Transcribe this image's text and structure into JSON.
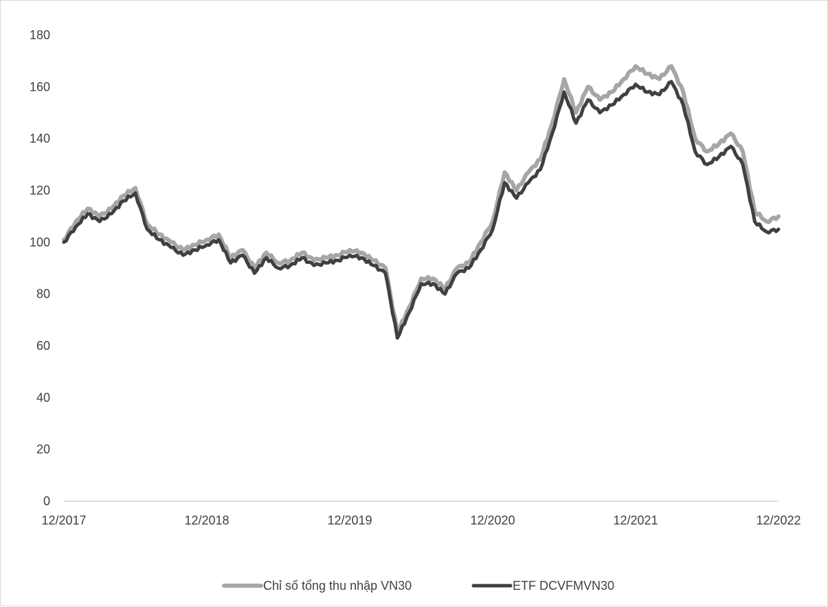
{
  "chart_data": {
    "type": "line",
    "title": "",
    "xlabel": "",
    "ylabel": "",
    "ylim": [
      0,
      180
    ],
    "yticks": [
      0,
      20,
      40,
      60,
      80,
      100,
      120,
      140,
      160,
      180
    ],
    "x_tick_labels": [
      "12/2017",
      "12/2018",
      "12/2019",
      "12/2020",
      "12/2021",
      "12/2022"
    ],
    "x_range": [
      "12/2017",
      "12/2022"
    ],
    "grid": false,
    "legend_position": "bottom",
    "series": [
      {
        "name": "Chỉ số tổng thu nhập VN30",
        "color": "#a6a6a6",
        "points": [
          [
            "12/2017",
            101
          ],
          [
            "01/2018",
            108
          ],
          [
            "02/2018",
            113
          ],
          [
            "03/2018",
            110
          ],
          [
            "04/2018",
            113
          ],
          [
            "05/2018",
            118
          ],
          [
            "06/2018",
            121
          ],
          [
            "07/2018",
            107
          ],
          [
            "08/2018",
            103
          ],
          [
            "09/2018",
            100
          ],
          [
            "10/2018",
            97
          ],
          [
            "11/2018",
            99
          ],
          [
            "12/2018",
            101
          ],
          [
            "01/2019",
            103
          ],
          [
            "02/2019",
            94
          ],
          [
            "03/2019",
            97
          ],
          [
            "04/2019",
            90
          ],
          [
            "05/2019",
            96
          ],
          [
            "06/2019",
            92
          ],
          [
            "07/2019",
            93
          ],
          [
            "08/2019",
            96
          ],
          [
            "09/2019",
            93
          ],
          [
            "10/2019",
            94
          ],
          [
            "11/2019",
            95
          ],
          [
            "12/2019",
            97
          ],
          [
            "01/2020",
            96
          ],
          [
            "02/2020",
            93
          ],
          [
            "03/2020",
            90
          ],
          [
            "04/2020",
            65
          ],
          [
            "05/2020",
            75
          ],
          [
            "06/2020",
            86
          ],
          [
            "07/2020",
            86
          ],
          [
            "08/2020",
            82
          ],
          [
            "09/2020",
            90
          ],
          [
            "10/2020",
            92
          ],
          [
            "11/2020",
            100
          ],
          [
            "12/2020",
            108
          ],
          [
            "01/2021",
            127
          ],
          [
            "02/2021",
            120
          ],
          [
            "03/2021",
            127
          ],
          [
            "04/2021",
            132
          ],
          [
            "05/2021",
            146
          ],
          [
            "06/2021",
            163
          ],
          [
            "07/2021",
            150
          ],
          [
            "08/2021",
            160
          ],
          [
            "09/2021",
            155
          ],
          [
            "10/2021",
            158
          ],
          [
            "11/2021",
            163
          ],
          [
            "12/2021",
            168
          ],
          [
            "01/2022",
            165
          ],
          [
            "02/2022",
            163
          ],
          [
            "03/2022",
            168
          ],
          [
            "04/2022",
            158
          ],
          [
            "05/2022",
            140
          ],
          [
            "06/2022",
            135
          ],
          [
            "07/2022",
            138
          ],
          [
            "08/2022",
            142
          ],
          [
            "09/2022",
            135
          ],
          [
            "10/2022",
            112
          ],
          [
            "11/2022",
            108
          ],
          [
            "12/2022",
            110
          ]
        ]
      },
      {
        "name": "ETF DCVFMVN30",
        "color": "#404040",
        "points": [
          [
            "12/2017",
            100
          ],
          [
            "01/2018",
            106
          ],
          [
            "02/2018",
            111
          ],
          [
            "03/2018",
            108
          ],
          [
            "04/2018",
            111
          ],
          [
            "05/2018",
            116
          ],
          [
            "06/2018",
            119
          ],
          [
            "07/2018",
            105
          ],
          [
            "08/2018",
            101
          ],
          [
            "09/2018",
            98
          ],
          [
            "10/2018",
            95
          ],
          [
            "11/2018",
            97
          ],
          [
            "12/2018",
            99
          ],
          [
            "01/2019",
            101
          ],
          [
            "02/2019",
            92
          ],
          [
            "03/2019",
            95
          ],
          [
            "04/2019",
            88
          ],
          [
            "05/2019",
            94
          ],
          [
            "06/2019",
            90
          ],
          [
            "07/2019",
            91
          ],
          [
            "08/2019",
            94
          ],
          [
            "09/2019",
            91
          ],
          [
            "10/2019",
            92
          ],
          [
            "11/2019",
            93
          ],
          [
            "12/2019",
            95
          ],
          [
            "01/2020",
            94
          ],
          [
            "02/2020",
            91
          ],
          [
            "03/2020",
            88
          ],
          [
            "04/2020",
            63
          ],
          [
            "05/2020",
            73
          ],
          [
            "06/2020",
            84
          ],
          [
            "07/2020",
            84
          ],
          [
            "08/2020",
            80
          ],
          [
            "09/2020",
            88
          ],
          [
            "10/2020",
            90
          ],
          [
            "11/2020",
            97
          ],
          [
            "12/2020",
            105
          ],
          [
            "01/2021",
            123
          ],
          [
            "02/2021",
            117
          ],
          [
            "03/2021",
            123
          ],
          [
            "04/2021",
            128
          ],
          [
            "05/2021",
            142
          ],
          [
            "06/2021",
            158
          ],
          [
            "07/2021",
            146
          ],
          [
            "08/2021",
            155
          ],
          [
            "09/2021",
            150
          ],
          [
            "10/2021",
            153
          ],
          [
            "11/2021",
            157
          ],
          [
            "12/2021",
            161
          ],
          [
            "01/2022",
            158
          ],
          [
            "02/2022",
            157
          ],
          [
            "03/2022",
            162
          ],
          [
            "04/2022",
            153
          ],
          [
            "05/2022",
            135
          ],
          [
            "06/2022",
            130
          ],
          [
            "07/2022",
            133
          ],
          [
            "08/2022",
            137
          ],
          [
            "09/2022",
            130
          ],
          [
            "10/2022",
            108
          ],
          [
            "11/2022",
            104
          ],
          [
            "12/2022",
            105
          ]
        ]
      }
    ]
  }
}
